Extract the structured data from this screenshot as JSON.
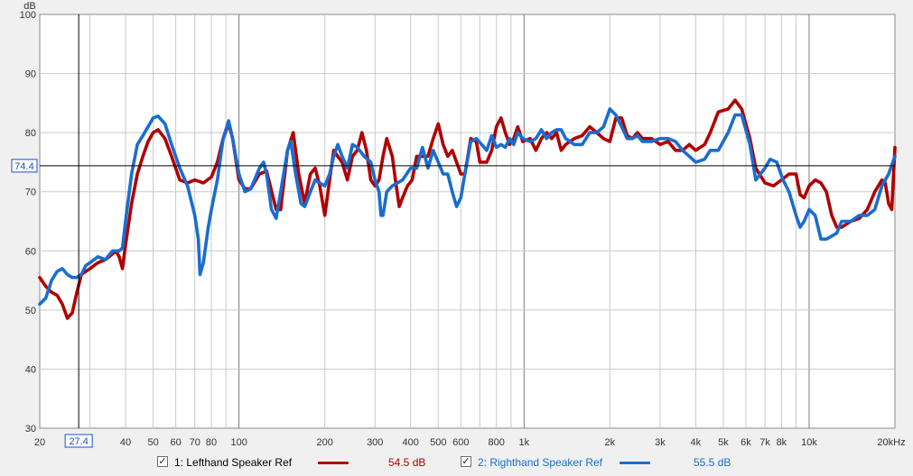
{
  "chart_data": {
    "type": "line",
    "title": "",
    "xlabel": "",
    "ylabel": "dB",
    "x_scale": "log",
    "xlim": [
      20,
      20000
    ],
    "ylim": [
      30,
      100
    ],
    "grid": true,
    "y_ticks": [
      "30",
      "40",
      "50",
      "60",
      "70",
      "80",
      "90",
      "100"
    ],
    "x_ticks": [
      {
        "v": 20,
        "label": "20"
      },
      {
        "v": 40,
        "label": "40"
      },
      {
        "v": 50,
        "label": "50"
      },
      {
        "v": 60,
        "label": "60"
      },
      {
        "v": 70,
        "label": "70"
      },
      {
        "v": 80,
        "label": "80"
      },
      {
        "v": 100,
        "label": "100"
      },
      {
        "v": 200,
        "label": "200"
      },
      {
        "v": 300,
        "label": "300"
      },
      {
        "v": 400,
        "label": "400"
      },
      {
        "v": 500,
        "label": "500"
      },
      {
        "v": 600,
        "label": "600"
      },
      {
        "v": 800,
        "label": "800"
      },
      {
        "v": 1000,
        "label": "1k"
      },
      {
        "v": 2000,
        "label": "2k"
      },
      {
        "v": 3000,
        "label": "3k"
      },
      {
        "v": 4000,
        "label": "4k"
      },
      {
        "v": 5000,
        "label": "5k"
      },
      {
        "v": 6000,
        "label": "6k"
      },
      {
        "v": 7000,
        "label": "7k"
      },
      {
        "v": 8000,
        "label": "8k"
      },
      {
        "v": 10000,
        "label": "10k"
      },
      {
        "v": 20000,
        "label": "20kHz"
      }
    ],
    "cursor": {
      "x": 27.4,
      "y": 74.4,
      "x_label": "27.4",
      "y_label": "74.4"
    },
    "series": [
      {
        "name": "1: Lefthand Speaker Ref",
        "color": "#b00000",
        "legend_value": "54.5 dB",
        "points": [
          [
            20,
            55.5
          ],
          [
            21,
            54
          ],
          [
            22,
            53
          ],
          [
            23,
            52.5
          ],
          [
            24,
            51
          ],
          [
            25,
            48.6
          ],
          [
            26,
            49.5
          ],
          [
            27,
            53
          ],
          [
            28,
            56
          ],
          [
            29,
            56.5
          ],
          [
            30,
            57
          ],
          [
            32,
            58
          ],
          [
            34,
            58.5
          ],
          [
            36,
            59.5
          ],
          [
            37,
            60
          ],
          [
            38,
            59
          ],
          [
            39,
            57
          ],
          [
            40,
            61
          ],
          [
            42,
            68
          ],
          [
            44,
            73
          ],
          [
            46,
            76
          ],
          [
            48,
            78.5
          ],
          [
            50,
            80
          ],
          [
            52,
            80.5
          ],
          [
            55,
            79
          ],
          [
            58,
            76
          ],
          [
            62,
            72
          ],
          [
            66,
            71.5
          ],
          [
            70,
            72
          ],
          [
            75,
            71.5
          ],
          [
            80,
            72.5
          ],
          [
            84,
            75
          ],
          [
            88,
            79
          ],
          [
            92,
            81.5
          ],
          [
            95,
            79
          ],
          [
            100,
            72
          ],
          [
            105,
            70.5
          ],
          [
            110,
            70.5
          ],
          [
            118,
            73
          ],
          [
            125,
            73.5
          ],
          [
            135,
            67
          ],
          [
            140,
            67
          ],
          [
            148,
            77
          ],
          [
            155,
            80
          ],
          [
            162,
            73
          ],
          [
            170,
            68
          ],
          [
            178,
            73
          ],
          [
            185,
            74
          ],
          [
            192,
            71
          ],
          [
            200,
            66
          ],
          [
            208,
            72
          ],
          [
            215,
            77
          ],
          [
            222,
            76
          ],
          [
            230,
            75
          ],
          [
            240,
            72
          ],
          [
            250,
            76
          ],
          [
            260,
            77
          ],
          [
            270,
            80
          ],
          [
            280,
            77
          ],
          [
            290,
            72
          ],
          [
            300,
            71
          ],
          [
            310,
            72
          ],
          [
            320,
            76
          ],
          [
            330,
            79
          ],
          [
            345,
            76
          ],
          [
            355,
            71.5
          ],
          [
            365,
            67.5
          ],
          [
            375,
            69
          ],
          [
            390,
            71
          ],
          [
            405,
            72
          ],
          [
            420,
            76
          ],
          [
            440,
            76
          ],
          [
            460,
            76
          ],
          [
            480,
            79
          ],
          [
            500,
            81.5
          ],
          [
            520,
            78
          ],
          [
            540,
            76
          ],
          [
            560,
            77
          ],
          [
            580,
            75
          ],
          [
            600,
            73
          ],
          [
            620,
            73
          ],
          [
            650,
            79
          ],
          [
            680,
            78.5
          ],
          [
            700,
            75
          ],
          [
            740,
            75
          ],
          [
            770,
            77
          ],
          [
            800,
            81
          ],
          [
            830,
            82.5
          ],
          [
            860,
            80
          ],
          [
            890,
            78
          ],
          [
            920,
            79
          ],
          [
            950,
            81
          ],
          [
            990,
            78.5
          ],
          [
            1050,
            79
          ],
          [
            1100,
            77
          ],
          [
            1150,
            79
          ],
          [
            1200,
            80
          ],
          [
            1250,
            79
          ],
          [
            1300,
            80
          ],
          [
            1350,
            77
          ],
          [
            1400,
            78
          ],
          [
            1500,
            79
          ],
          [
            1600,
            79.5
          ],
          [
            1700,
            81
          ],
          [
            1800,
            80
          ],
          [
            1900,
            79
          ],
          [
            2000,
            78.5
          ],
          [
            2100,
            82.5
          ],
          [
            2200,
            82.5
          ],
          [
            2300,
            79.5
          ],
          [
            2400,
            79
          ],
          [
            2500,
            80
          ],
          [
            2600,
            79
          ],
          [
            2800,
            79
          ],
          [
            3000,
            78
          ],
          [
            3200,
            78.5
          ],
          [
            3400,
            77
          ],
          [
            3600,
            77
          ],
          [
            3800,
            78
          ],
          [
            4000,
            77
          ],
          [
            4300,
            78
          ],
          [
            4500,
            80
          ],
          [
            4800,
            83.5
          ],
          [
            5200,
            84
          ],
          [
            5500,
            85.5
          ],
          [
            5800,
            84
          ],
          [
            6200,
            79
          ],
          [
            6500,
            74
          ],
          [
            7000,
            71.5
          ],
          [
            7500,
            71
          ],
          [
            8000,
            72
          ],
          [
            8500,
            73
          ],
          [
            9000,
            73
          ],
          [
            9300,
            69.5
          ],
          [
            9600,
            69
          ],
          [
            10000,
            71
          ],
          [
            10500,
            72
          ],
          [
            11000,
            71.5
          ],
          [
            11500,
            70
          ],
          [
            12000,
            66
          ],
          [
            12500,
            64
          ],
          [
            13000,
            64
          ],
          [
            14000,
            65
          ],
          [
            15000,
            65.5
          ],
          [
            16000,
            67
          ],
          [
            17000,
            70
          ],
          [
            18000,
            72
          ],
          [
            18500,
            71.5
          ],
          [
            19000,
            68
          ],
          [
            19500,
            67
          ],
          [
            20000,
            77.5
          ]
        ]
      },
      {
        "name": "2: Righthand Speaker Ref",
        "color": "#1a6dd0",
        "legend_value": "55.5 dB",
        "points": [
          [
            20,
            51
          ],
          [
            21,
            52
          ],
          [
            22,
            55
          ],
          [
            23,
            56.5
          ],
          [
            24,
            57
          ],
          [
            25,
            56
          ],
          [
            26,
            55.5
          ],
          [
            27,
            55.5
          ],
          [
            28,
            56
          ],
          [
            29,
            57.5
          ],
          [
            30,
            58
          ],
          [
            32,
            59
          ],
          [
            34,
            58.5
          ],
          [
            36,
            60
          ],
          [
            38,
            60
          ],
          [
            39,
            60.5
          ],
          [
            40,
            65
          ],
          [
            42,
            73
          ],
          [
            44,
            78
          ],
          [
            46,
            79.5
          ],
          [
            48,
            81
          ],
          [
            50,
            82.5
          ],
          [
            52,
            82.8
          ],
          [
            55,
            81.5
          ],
          [
            58,
            78
          ],
          [
            62,
            74
          ],
          [
            66,
            71
          ],
          [
            70,
            66
          ],
          [
            72,
            62
          ],
          [
            73,
            56
          ],
          [
            75,
            58
          ],
          [
            78,
            64
          ],
          [
            80,
            67
          ],
          [
            84,
            72
          ],
          [
            88,
            79
          ],
          [
            92,
            82
          ],
          [
            95,
            79
          ],
          [
            100,
            73
          ],
          [
            105,
            70
          ],
          [
            110,
            70.5
          ],
          [
            118,
            74
          ],
          [
            122,
            75
          ],
          [
            125,
            73
          ],
          [
            130,
            67
          ],
          [
            135,
            65.5
          ],
          [
            140,
            70
          ],
          [
            148,
            77
          ],
          [
            152,
            78.5
          ],
          [
            158,
            73
          ],
          [
            165,
            68
          ],
          [
            170,
            67.5
          ],
          [
            178,
            70
          ],
          [
            185,
            72
          ],
          [
            192,
            71.5
          ],
          [
            200,
            71
          ],
          [
            208,
            73
          ],
          [
            215,
            76
          ],
          [
            222,
            78
          ],
          [
            230,
            76
          ],
          [
            240,
            74
          ],
          [
            250,
            78
          ],
          [
            260,
            77.5
          ],
          [
            275,
            76
          ],
          [
            290,
            75
          ],
          [
            300,
            72
          ],
          [
            310,
            70
          ],
          [
            315,
            66
          ],
          [
            320,
            66
          ],
          [
            330,
            70
          ],
          [
            345,
            71
          ],
          [
            360,
            71.5
          ],
          [
            375,
            72
          ],
          [
            400,
            74
          ],
          [
            420,
            74
          ],
          [
            440,
            77.5
          ],
          [
            460,
            74
          ],
          [
            480,
            77
          ],
          [
            500,
            75
          ],
          [
            520,
            73
          ],
          [
            540,
            73
          ],
          [
            560,
            70
          ],
          [
            580,
            67.5
          ],
          [
            600,
            69
          ],
          [
            620,
            73
          ],
          [
            650,
            78.5
          ],
          [
            680,
            79
          ],
          [
            710,
            78
          ],
          [
            740,
            77
          ],
          [
            770,
            79.5
          ],
          [
            800,
            77.5
          ],
          [
            830,
            78
          ],
          [
            860,
            77.5
          ],
          [
            890,
            79
          ],
          [
            920,
            78
          ],
          [
            950,
            80
          ],
          [
            990,
            79
          ],
          [
            1050,
            78.5
          ],
          [
            1100,
            79
          ],
          [
            1150,
            80.5
          ],
          [
            1200,
            79
          ],
          [
            1250,
            80
          ],
          [
            1300,
            80.5
          ],
          [
            1350,
            80.5
          ],
          [
            1400,
            79
          ],
          [
            1500,
            78
          ],
          [
            1600,
            78
          ],
          [
            1700,
            80
          ],
          [
            1800,
            80
          ],
          [
            1900,
            81
          ],
          [
            2000,
            84
          ],
          [
            2100,
            83
          ],
          [
            2200,
            81
          ],
          [
            2300,
            79
          ],
          [
            2400,
            79
          ],
          [
            2500,
            79.5
          ],
          [
            2600,
            78.5
          ],
          [
            2800,
            78.5
          ],
          [
            3000,
            79
          ],
          [
            3200,
            79
          ],
          [
            3400,
            78.5
          ],
          [
            3600,
            77
          ],
          [
            3800,
            76
          ],
          [
            4000,
            75
          ],
          [
            4300,
            75.5
          ],
          [
            4500,
            77
          ],
          [
            4800,
            77
          ],
          [
            5200,
            80
          ],
          [
            5500,
            83
          ],
          [
            5800,
            83
          ],
          [
            6200,
            78
          ],
          [
            6500,
            72
          ],
          [
            7000,
            74
          ],
          [
            7300,
            75.5
          ],
          [
            7700,
            75
          ],
          [
            8100,
            72
          ],
          [
            8500,
            70
          ],
          [
            9000,
            66
          ],
          [
            9300,
            64
          ],
          [
            9600,
            65
          ],
          [
            10000,
            67
          ],
          [
            10500,
            66
          ],
          [
            11000,
            62
          ],
          [
            11500,
            62
          ],
          [
            12000,
            62.5
          ],
          [
            12500,
            63
          ],
          [
            13000,
            65
          ],
          [
            14000,
            65
          ],
          [
            15000,
            66
          ],
          [
            16000,
            66
          ],
          [
            17000,
            67
          ],
          [
            18000,
            71
          ],
          [
            19000,
            73
          ],
          [
            20000,
            76
          ]
        ]
      }
    ]
  }
}
